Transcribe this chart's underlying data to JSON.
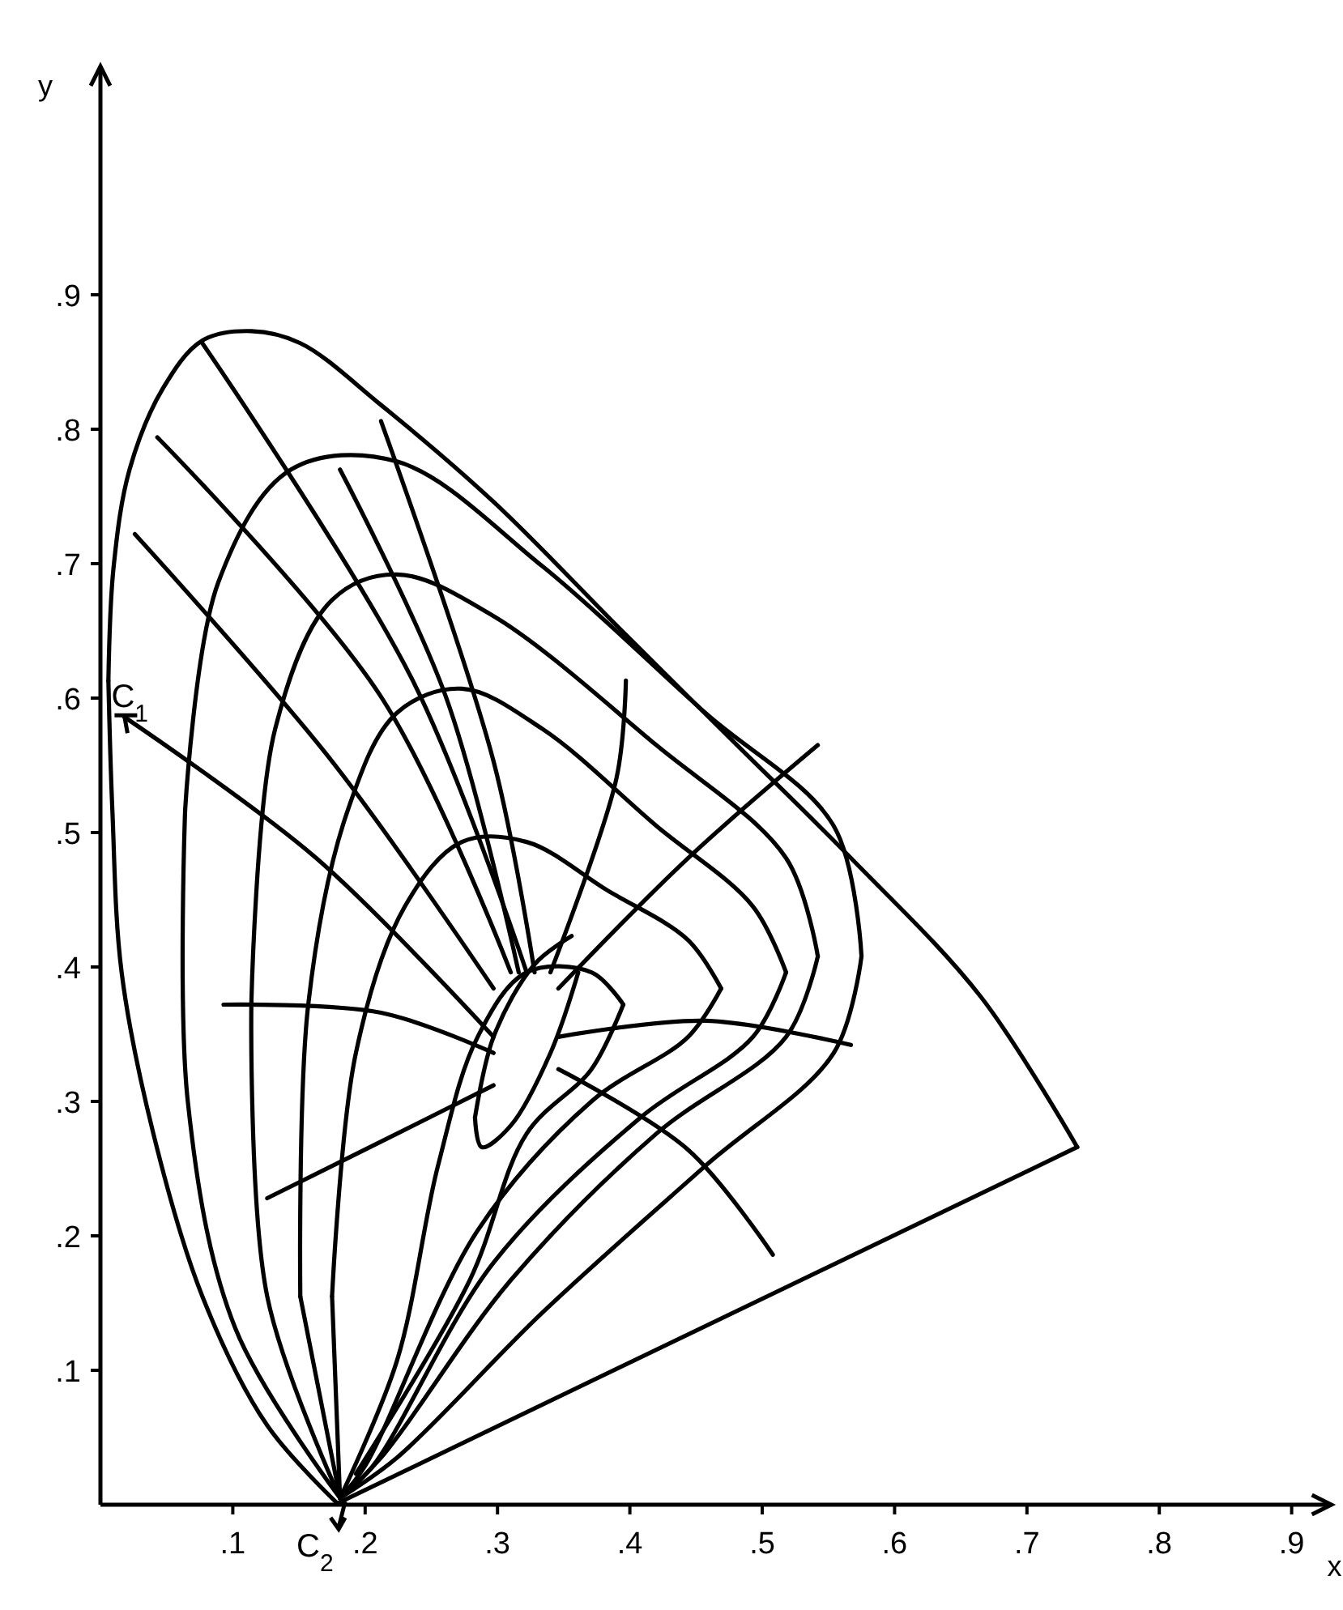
{
  "chart_data": {
    "type": "line",
    "xlabel": "x",
    "ylabel": "y",
    "xlim": [
      0,
      0.93
    ],
    "ylim": [
      0,
      1.07
    ],
    "xticks": [
      {
        "value": 0.1,
        "label": ".1"
      },
      {
        "value": 0.2,
        "label": ".2"
      },
      {
        "value": 0.3,
        "label": ".3"
      },
      {
        "value": 0.4,
        "label": ".4"
      },
      {
        "value": 0.5,
        "label": ".5"
      },
      {
        "value": 0.6,
        "label": ".6"
      },
      {
        "value": 0.7,
        "label": ".7"
      },
      {
        "value": 0.8,
        "label": ".8"
      },
      {
        "value": 0.9,
        "label": ".9"
      }
    ],
    "yticks": [
      {
        "value": 0.1,
        "label": ".1"
      },
      {
        "value": 0.2,
        "label": ".2"
      },
      {
        "value": 0.3,
        "label": ".3"
      },
      {
        "value": 0.4,
        "label": ".4"
      },
      {
        "value": 0.5,
        "label": ".5"
      },
      {
        "value": 0.6,
        "label": ".6"
      },
      {
        "value": 0.7,
        "label": ".7"
      },
      {
        "value": 0.8,
        "label": ".8"
      },
      {
        "value": 0.9,
        "label": ".9"
      }
    ],
    "grid": false,
    "marker": "none",
    "line_style": "solid",
    "annotations": [
      {
        "text": "C$_{1}$",
        "x": 0.018,
        "y": 0.586
      },
      {
        "text": "C$_{2}$",
        "x": 0.18,
        "y": 0
      }
    ],
    "series": [
      {
        "color": "#000000",
        "x": [
          0.179,
          0.126,
          0.077,
          0.04,
          0.016,
          0.009,
          0.006
        ],
        "values": [
          0.001,
          0.059,
          0.155,
          0.276,
          0.396,
          0.517,
          0.613
        ]
      },
      {
        "color": "#000000",
        "x": [
          0.006,
          0.01,
          0.022,
          0.047,
          0.077,
          0.114,
          0.151,
          0.212,
          0.297,
          0.395,
          0.481,
          0.567,
          0.665,
          0.738
        ],
        "values": [
          0.613,
          0.698,
          0.77,
          0.83,
          0.866,
          0.873,
          0.864,
          0.818,
          0.746,
          0.649,
          0.565,
          0.481,
          0.378,
          0.266
        ]
      },
      {
        "color": "#000000",
        "x": [
          0.738,
          0.179
        ],
        "values": [
          0.266,
          0.001
        ]
      },
      {
        "color": "#000000",
        "x": [
          0.181,
          0.102,
          0.066,
          0.064
        ],
        "values": [
          0.005,
          0.131,
          0.3,
          0.517
        ]
      },
      {
        "color": "#000000",
        "x": [
          0.064,
          0.089,
          0.144,
          0.224,
          0.334,
          0.457,
          0.554,
          0.575
        ],
        "values": [
          0.517,
          0.686,
          0.77,
          0.776,
          0.698,
          0.589,
          0.505,
          0.408
        ]
      },
      {
        "color": "#000000",
        "x": [
          0.575,
          0.554,
          0.457,
          0.334,
          0.224,
          0.181
        ],
        "values": [
          0.408,
          0.336,
          0.252,
          0.143,
          0.035,
          0.005
        ]
      },
      {
        "color": "#000000",
        "x": [
          0.181,
          0.126,
          0.114
        ],
        "values": [
          0.005,
          0.155,
          0.372
        ]
      },
      {
        "color": "#000000",
        "x": [
          0.114,
          0.132,
          0.175,
          0.224,
          0.297,
          0.42,
          0.518,
          0.542
        ],
        "values": [
          0.372,
          0.577,
          0.673,
          0.692,
          0.661,
          0.565,
          0.481,
          0.408
        ]
      },
      {
        "color": "#000000",
        "x": [
          0.542,
          0.518,
          0.42,
          0.31,
          0.212,
          0.181
        ],
        "values": [
          0.408,
          0.348,
          0.276,
          0.167,
          0.035,
          0.005
        ]
      },
      {
        "color": "#000000",
        "x": [
          0.181,
          0.151
        ],
        "values": [
          0.005,
          0.155
        ]
      },
      {
        "color": "#000000",
        "x": [
          0.151,
          0.157,
          0.187,
          0.224,
          0.273,
          0.334,
          0.42,
          0.493,
          0.518
        ],
        "values": [
          0.155,
          0.372,
          0.517,
          0.589,
          0.607,
          0.577,
          0.505,
          0.445,
          0.396
        ]
      },
      {
        "color": "#000000",
        "x": [
          0.518,
          0.493,
          0.408,
          0.297,
          0.206,
          0.181
        ],
        "values": [
          0.396,
          0.348,
          0.288,
          0.18,
          0.029,
          0.005
        ]
      },
      {
        "color": "#000000",
        "x": [
          0.181,
          0.175
        ],
        "values": [
          0.005,
          0.155
        ]
      },
      {
        "color": "#000000",
        "x": [
          0.175,
          0.193,
          0.23,
          0.273,
          0.322,
          0.383,
          0.444,
          0.469
        ],
        "values": [
          0.155,
          0.336,
          0.445,
          0.493,
          0.493,
          0.457,
          0.42,
          0.384
        ]
      },
      {
        "color": "#000000",
        "x": [
          0.469,
          0.444,
          0.371,
          0.285,
          0.2,
          0.181
        ],
        "values": [
          0.384,
          0.348,
          0.3,
          0.204,
          0.029,
          0.005
        ]
      },
      {
        "color": "#000000",
        "x": [
          0.181,
          0.224,
          0.255,
          0.285,
          0.322,
          0.371,
          0.395
        ],
        "values": [
          0.005,
          0.107,
          0.252,
          0.348,
          0.396,
          0.396,
          0.372
        ]
      },
      {
        "color": "#000000",
        "x": [
          0.395,
          0.371,
          0.322,
          0.279,
          0.193
        ],
        "values": [
          0.372,
          0.324,
          0.276,
          0.167,
          0.023
        ]
      },
      {
        "color": "#000000",
        "x": [
          0.361,
          0.34,
          0.31,
          0.288,
          0.283
        ],
        "values": [
          0.396,
          0.336,
          0.282,
          0.266,
          0.288
        ]
      },
      {
        "color": "#000000",
        "x": [
          0.283,
          0.297,
          0.328,
          0.356
        ],
        "values": [
          0.288,
          0.348,
          0.402,
          0.423
        ]
      },
      {
        "color": "#000000",
        "x": [
          0.077,
          0.236,
          0.322
        ],
        "values": [
          0.864,
          0.613,
          0.396
        ]
      },
      {
        "color": "#000000",
        "x": [
          0.043,
          0.212,
          0.31
        ],
        "values": [
          0.794,
          0.601,
          0.396
        ]
      },
      {
        "color": "#000000",
        "x": [
          0.026,
          0.175,
          0.297
        ],
        "values": [
          0.722,
          0.553,
          0.384
        ]
      },
      {
        "color": "#000000",
        "x": [
          0.018,
          0.163,
          0.297
        ],
        "values": [
          0.586,
          0.481,
          0.348
        ]
      },
      {
        "color": "#000000",
        "x": [
          0.093,
          0.212,
          0.297
        ],
        "values": [
          0.372,
          0.366,
          0.336
        ]
      },
      {
        "color": "#000000",
        "x": [
          0.126,
          0.224,
          0.297
        ],
        "values": [
          0.228,
          0.276,
          0.312
        ]
      },
      {
        "color": "#000000",
        "x": [
          0.346,
          0.444,
          0.508
        ],
        "values": [
          0.324,
          0.264,
          0.186
        ]
      },
      {
        "color": "#000000",
        "x": [
          0.346,
          0.457,
          0.567
        ],
        "values": [
          0.348,
          0.36,
          0.342
        ]
      },
      {
        "color": "#000000",
        "x": [
          0.346,
          0.444,
          0.542
        ],
        "values": [
          0.384,
          0.481,
          0.565
        ]
      },
      {
        "color": "#000000",
        "x": [
          0.34,
          0.39,
          0.397
        ],
        "values": [
          0.396,
          0.541,
          0.613
        ]
      },
      {
        "color": "#000000",
        "x": [
          0.328,
          0.297,
          0.212
        ],
        "values": [
          0.396,
          0.553,
          0.806
        ]
      },
      {
        "color": "#000000",
        "x": [
          0.316,
          0.261,
          0.181
        ],
        "values": [
          0.396,
          0.601,
          0.77
        ]
      }
    ]
  }
}
